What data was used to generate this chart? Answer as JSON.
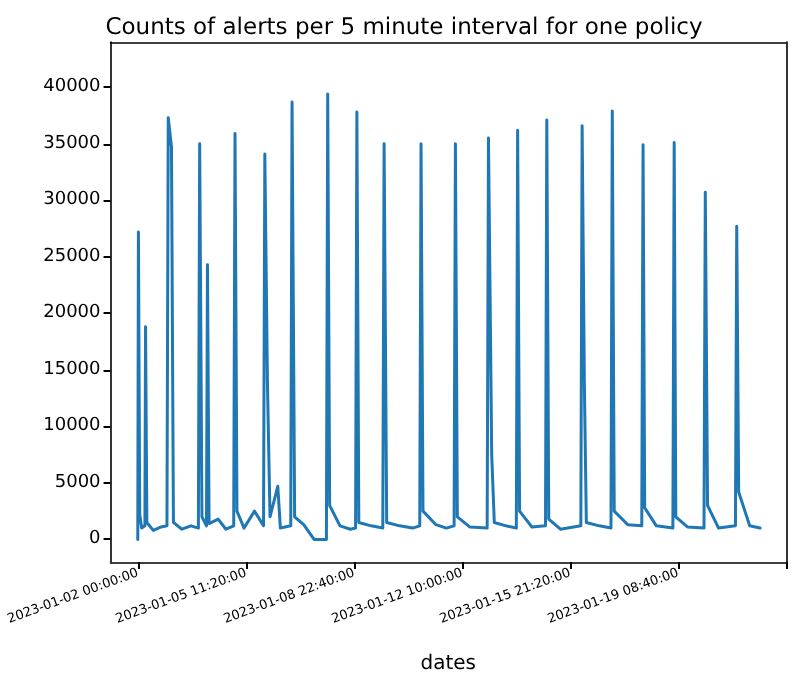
{
  "chart_data": {
    "type": "line",
    "title": "Counts of alerts per 5 minute interval for one policy",
    "xlabel": "dates",
    "x": [
      "2023-01-02T00:00",
      "2023-01-02T00:30",
      "2023-01-02T01:30",
      "2023-01-02T03:00",
      "2023-01-02T05:30",
      "2023-01-02T06:00",
      "2023-01-02T07:00",
      "2023-01-02T12:00",
      "2023-01-02T18:00",
      "2023-01-02T22:30",
      "2023-01-02T23:30",
      "2023-01-03T02:00",
      "2023-01-03T03:30",
      "2023-01-03T10:00",
      "2023-01-03T17:00",
      "2023-01-03T22:45",
      "2023-01-03T23:45",
      "2023-01-04T01:30",
      "2023-01-04T05:00",
      "2023-01-04T05:45",
      "2023-01-04T07:00",
      "2023-01-04T14:00",
      "2023-01-04T20:00",
      "2023-01-05T02:00",
      "2023-01-05T03:00",
      "2023-01-05T04:30",
      "2023-01-05T10:00",
      "2023-01-05T18:00",
      "2023-01-06T01:00",
      "2023-01-06T02:00",
      "2023-01-06T04:00",
      "2023-01-06T06:00",
      "2023-01-06T12:00",
      "2023-01-06T14:00",
      "2023-01-06T22:00",
      "2023-01-06T23:00",
      "2023-01-07T01:00",
      "2023-01-07T08:00",
      "2023-01-07T16:00",
      "2023-01-08T01:30",
      "2023-01-08T02:30",
      "2023-01-08T04:00",
      "2023-01-08T12:00",
      "2023-01-08T20:00",
      "2023-01-09T00:00",
      "2023-01-09T01:00",
      "2023-01-09T02:30",
      "2023-01-09T12:00",
      "2023-01-09T21:00",
      "2023-01-09T22:00",
      "2023-01-10T00:00",
      "2023-01-10T10:00",
      "2023-01-10T20:00",
      "2023-01-11T01:30",
      "2023-01-11T02:30",
      "2023-01-11T04:00",
      "2023-01-11T14:00",
      "2023-01-11T22:00",
      "2023-01-12T04:00",
      "2023-01-12T05:00",
      "2023-01-12T06:30",
      "2023-01-12T16:00",
      "2023-01-13T05:30",
      "2023-01-13T06:30",
      "2023-01-13T09:00",
      "2023-01-13T11:00",
      "2023-01-13T20:00",
      "2023-01-14T04:00",
      "2023-01-14T05:00",
      "2023-01-14T06:30",
      "2023-01-14T16:00",
      "2023-01-15T02:30",
      "2023-01-15T03:30",
      "2023-01-15T05:00",
      "2023-01-15T14:00",
      "2023-01-16T05:45",
      "2023-01-16T06:45",
      "2023-01-16T08:30",
      "2023-01-16T10:00",
      "2023-01-16T20:00",
      "2023-01-17T05:00",
      "2023-01-17T06:00",
      "2023-01-17T07:30",
      "2023-01-17T18:00",
      "2023-01-18T04:45",
      "2023-01-18T05:45",
      "2023-01-18T07:00",
      "2023-01-18T16:00",
      "2023-01-19T04:45",
      "2023-01-19T05:45",
      "2023-01-19T07:00",
      "2023-01-19T16:00",
      "2023-01-20T04:45",
      "2023-01-20T05:45",
      "2023-01-20T07:30",
      "2023-01-20T16:00",
      "2023-01-21T05:00",
      "2023-01-21T06:00",
      "2023-01-21T07:30",
      "2023-01-21T16:00",
      "2023-01-22T00:00"
    ],
    "series": [
      {
        "color": "#1f77b4",
        "values": [
          0,
          27200,
          2200,
          1000,
          1200,
          18800,
          1500,
          800,
          1100,
          1200,
          37300,
          34700,
          1500,
          900,
          1200,
          1000,
          35000,
          2000,
          1200,
          24300,
          1400,
          1800,
          900,
          1200,
          35900,
          2500,
          1000,
          2500,
          1200,
          34100,
          14000,
          2000,
          4700,
          1000,
          1200,
          38700,
          2000,
          1300,
          0,
          0,
          39400,
          3000,
          1200,
          900,
          1000,
          37800,
          1500,
          1200,
          1000,
          35000,
          1500,
          1200,
          1000,
          1200,
          35000,
          2500,
          1300,
          1000,
          1200,
          35000,
          2000,
          1100,
          1000,
          35500,
          7500,
          1500,
          1200,
          1000,
          36200,
          2500,
          1100,
          1200,
          37100,
          1800,
          900,
          1200,
          36600,
          13500,
          1500,
          1200,
          1000,
          37900,
          2500,
          1300,
          1200,
          34900,
          2800,
          1200,
          1000,
          35100,
          2000,
          1100,
          1000,
          30700,
          3000,
          1000,
          1200,
          27700,
          4200,
          1200,
          1000
        ]
      }
    ],
    "xlim": [
      "2023-01-01T03:00",
      "2023-01-22T20:00"
    ],
    "xticks": [
      {
        "value": "2023-01-02T00:00",
        "label": "2023-01-02 00:00:00"
      },
      {
        "value": "2023-01-05T11:20",
        "label": "2023-01-05 11:20:00"
      },
      {
        "value": "2023-01-08T22:40",
        "label": "2023-01-08 22:40:00"
      },
      {
        "value": "2023-01-12T10:00",
        "label": "2023-01-12 10:00:00"
      },
      {
        "value": "2023-01-15T21:20",
        "label": "2023-01-15 21:20:00"
      },
      {
        "value": "2023-01-19T08:40",
        "label": "2023-01-19 08:40:00"
      },
      {
        "value": "2023-01-22T20:00",
        "label": null
      }
    ],
    "ylim": [
      -2000,
      44000
    ],
    "yticks": [
      0,
      5000,
      10000,
      15000,
      20000,
      25000,
      30000,
      35000,
      40000
    ],
    "grid": false,
    "marker": "none",
    "line_style": "solid"
  }
}
